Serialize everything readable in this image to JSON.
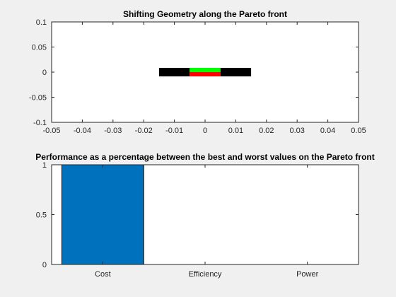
{
  "window": {
    "background": "#f0f0f0"
  },
  "chart_data": [
    {
      "type": "geometry",
      "title": "Shifting Geometry along the Pareto front",
      "xlim": [
        -0.05,
        0.05
      ],
      "ylim": [
        -0.1,
        0.1
      ],
      "x_ticks": [
        -0.05,
        -0.04,
        -0.03,
        -0.02,
        -0.01,
        0,
        0.01,
        0.02,
        0.03,
        0.04,
        0.05
      ],
      "x_tick_labels": [
        "-0.05",
        "-0.04",
        "-0.03",
        "-0.02",
        "-0.01",
        "0",
        "0.01",
        "0.02",
        "0.03",
        "0.04",
        "0.05"
      ],
      "y_ticks": [
        -0.1,
        -0.05,
        0,
        0.05,
        0.1
      ],
      "y_tick_labels": [
        "-0.1",
        "-0.05",
        "0",
        "0.05",
        "0.1"
      ],
      "grid": false,
      "rectangles": [
        {
          "name": "left-black-block",
          "x": [
            -0.015,
            -0.005
          ],
          "y": [
            -0.0085,
            0.0085
          ],
          "color": "#000000"
        },
        {
          "name": "right-black-block",
          "x": [
            0.005,
            0.015
          ],
          "y": [
            -0.0085,
            0.0085
          ],
          "color": "#000000"
        },
        {
          "name": "green-top-block",
          "x": [
            -0.005,
            0.005
          ],
          "y": [
            0.0,
            0.0085
          ],
          "color": "#00ff00"
        },
        {
          "name": "red-bottom-block",
          "x": [
            -0.005,
            0.005
          ],
          "y": [
            -0.0085,
            0.0
          ],
          "color": "#ff0000"
        }
      ]
    },
    {
      "type": "bar",
      "title": "Performance as a percentage between the best and worst values on the Pareto front",
      "categories": [
        "Cost",
        "Efficiency",
        "Power"
      ],
      "values": [
        1,
        0,
        0
      ],
      "ylim": [
        0,
        1
      ],
      "y_ticks": [
        0,
        0.5,
        1
      ],
      "y_tick_labels": [
        "0",
        "0.5",
        "1"
      ],
      "bar_color": "#0072bd",
      "grid": false
    }
  ]
}
